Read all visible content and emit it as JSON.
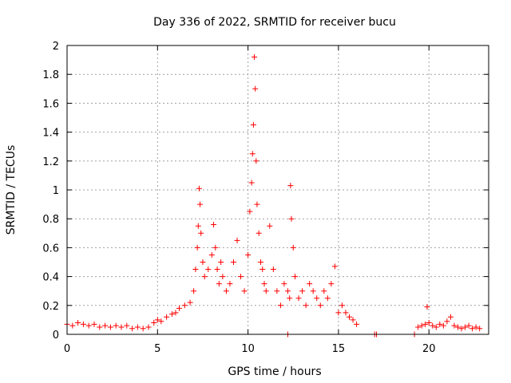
{
  "chart_data": {
    "type": "scatter",
    "title": "Day 336 of 2022, SRMTID for receiver bucu",
    "xlabel": "GPS time / hours",
    "ylabel": "SRMTID / TECUs",
    "xlim": [
      0,
      23.3
    ],
    "ylim": [
      0,
      2
    ],
    "xticks": [
      0,
      5,
      10,
      15,
      20
    ],
    "xtick_labels": [
      "0",
      "5",
      "10",
      "15",
      "20"
    ],
    "yticks": [
      0,
      0.2,
      0.4,
      0.6,
      0.8,
      1,
      1.2,
      1.4,
      1.6,
      1.8,
      2
    ],
    "ytick_labels": [
      "0",
      "0.2",
      "0.4",
      "0.6",
      "0.8",
      "1",
      "1.2",
      "1.4",
      "1.6",
      "1.8",
      "2"
    ],
    "grid": true,
    "marker": "+",
    "color": "#ff0000",
    "series": [
      {
        "name": "SRMTID",
        "x": [
          0.0,
          0.3,
          0.6,
          0.9,
          1.2,
          1.5,
          1.8,
          2.1,
          2.4,
          2.7,
          3.0,
          3.3,
          3.6,
          3.9,
          4.2,
          4.5,
          4.8,
          5.0,
          5.2,
          5.5,
          5.8,
          6.0,
          6.2,
          6.5,
          6.8,
          7.0,
          7.1,
          7.2,
          7.25,
          7.3,
          7.35,
          7.4,
          7.5,
          7.6,
          7.8,
          8.0,
          8.1,
          8.2,
          8.3,
          8.4,
          8.5,
          8.6,
          8.8,
          9.0,
          9.2,
          9.4,
          9.6,
          9.8,
          10.0,
          10.1,
          10.2,
          10.25,
          10.3,
          10.35,
          10.4,
          10.45,
          10.5,
          10.6,
          10.7,
          10.8,
          10.9,
          11.0,
          11.2,
          11.4,
          11.6,
          11.8,
          12.0,
          12.2,
          12.3,
          12.35,
          12.4,
          12.5,
          12.6,
          12.8,
          13.0,
          13.2,
          13.4,
          13.6,
          13.8,
          14.0,
          14.2,
          14.4,
          14.6,
          14.8,
          15.0,
          15.2,
          15.4,
          15.6,
          15.8,
          16.0,
          12.2,
          17.0,
          17.1,
          19.2,
          19.4,
          19.6,
          19.8,
          19.9,
          20.0,
          20.2,
          20.4,
          20.6,
          20.8,
          21.0,
          21.2,
          21.4,
          21.6,
          21.8,
          22.0,
          22.2,
          22.4,
          22.6,
          22.8
        ],
        "y": [
          0.07,
          0.06,
          0.08,
          0.07,
          0.06,
          0.07,
          0.05,
          0.06,
          0.05,
          0.06,
          0.05,
          0.06,
          0.04,
          0.05,
          0.04,
          0.05,
          0.08,
          0.1,
          0.09,
          0.12,
          0.14,
          0.15,
          0.18,
          0.2,
          0.22,
          0.3,
          0.45,
          0.6,
          0.75,
          1.01,
          0.9,
          0.7,
          0.5,
          0.4,
          0.45,
          0.55,
          0.76,
          0.6,
          0.45,
          0.35,
          0.5,
          0.4,
          0.3,
          0.35,
          0.5,
          0.65,
          0.4,
          0.3,
          0.55,
          0.85,
          1.05,
          1.25,
          1.45,
          1.92,
          1.7,
          1.2,
          0.9,
          0.7,
          0.5,
          0.45,
          0.35,
          0.3,
          0.75,
          0.45,
          0.3,
          0.2,
          0.35,
          0.3,
          0.25,
          1.03,
          0.8,
          0.6,
          0.4,
          0.25,
          0.3,
          0.2,
          0.35,
          0.3,
          0.25,
          0.2,
          0.3,
          0.25,
          0.35,
          0.47,
          0.15,
          0.2,
          0.15,
          0.12,
          0.1,
          0.07,
          0.0,
          0.0,
          0.0,
          0.0,
          0.05,
          0.06,
          0.07,
          0.19,
          0.08,
          0.06,
          0.05,
          0.07,
          0.06,
          0.09,
          0.12,
          0.06,
          0.05,
          0.04,
          0.05,
          0.06,
          0.04,
          0.05,
          0.04
        ]
      }
    ]
  }
}
